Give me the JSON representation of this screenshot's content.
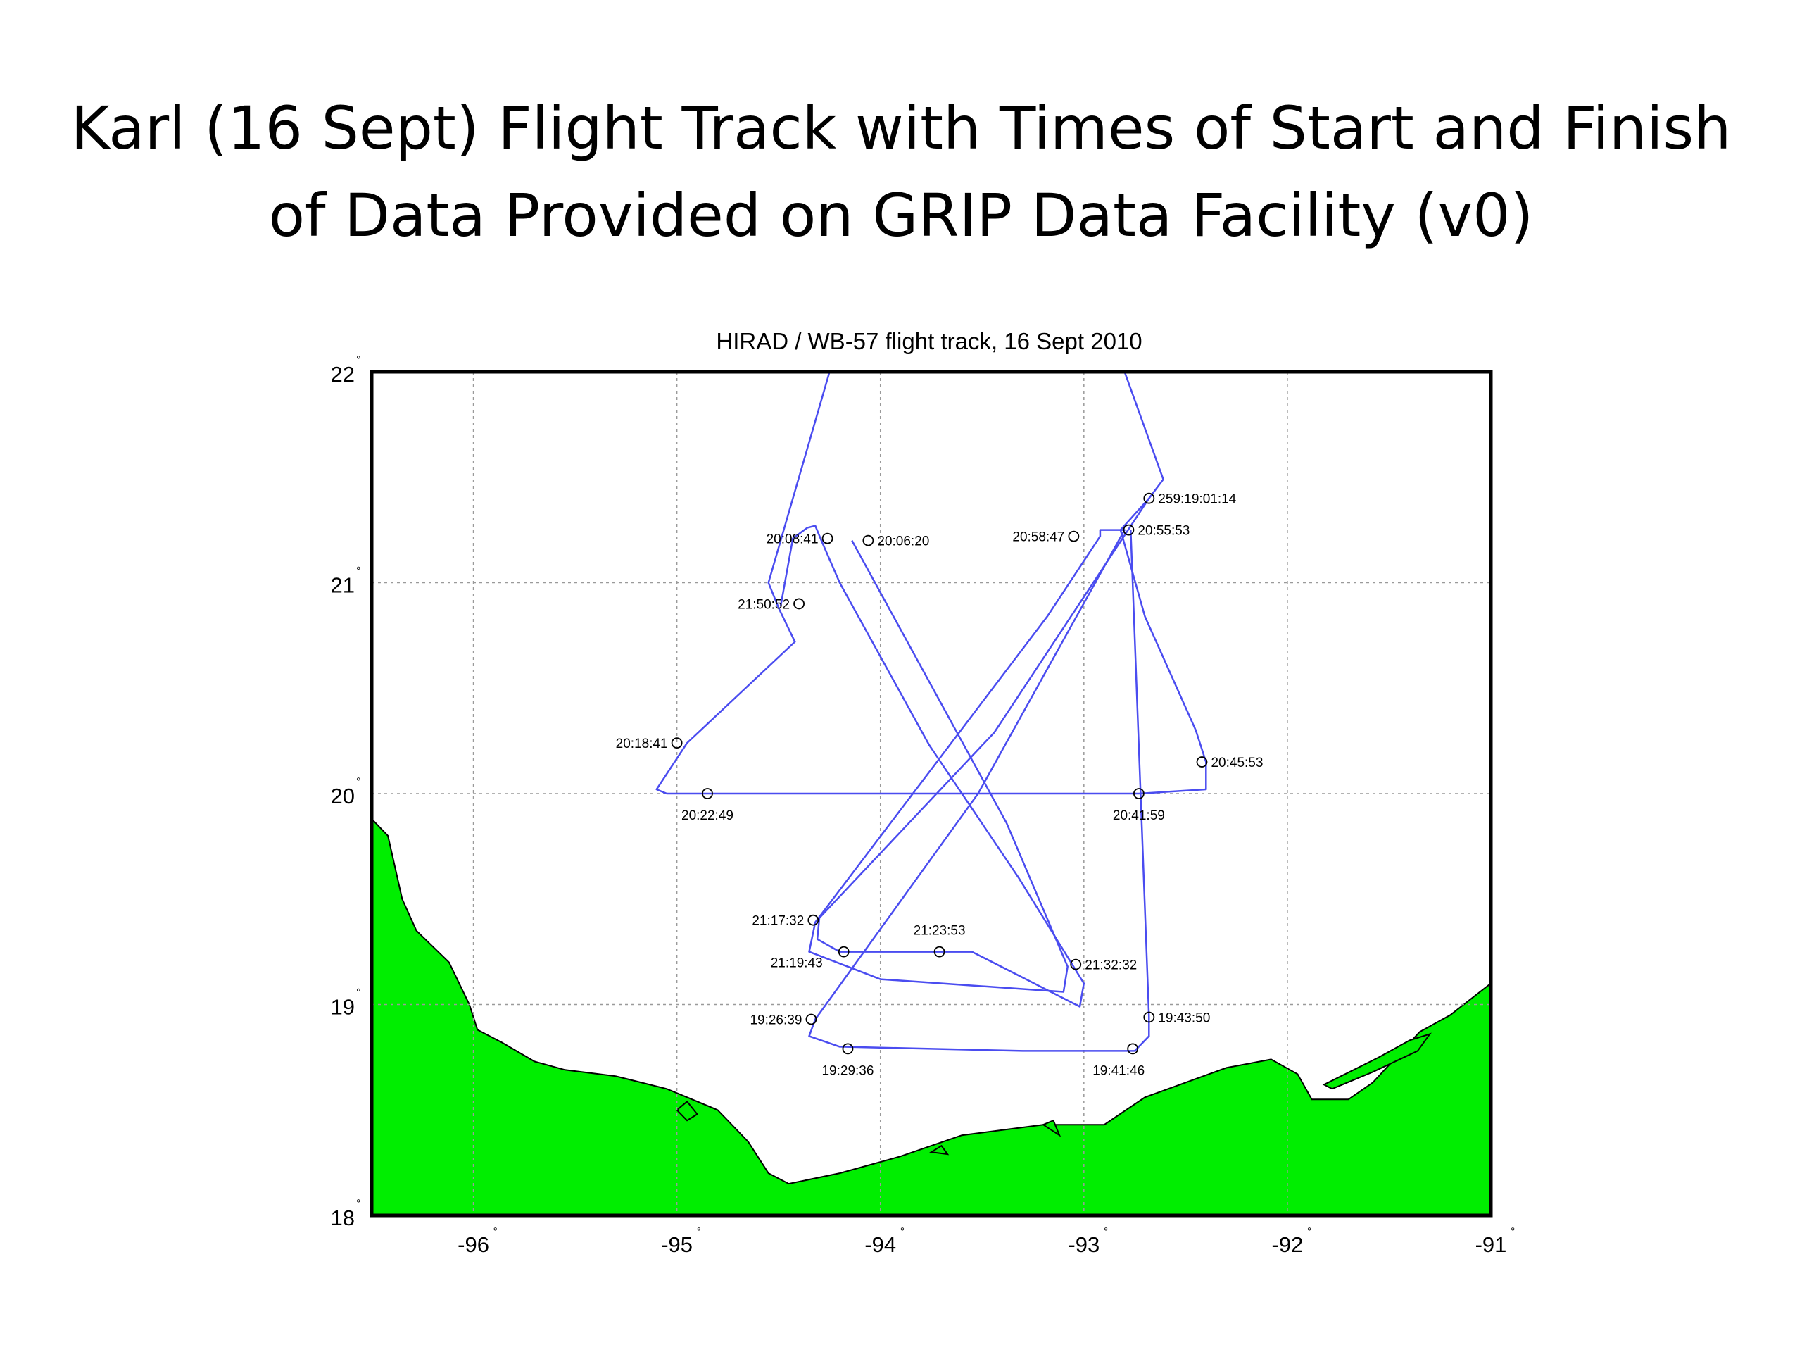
{
  "slide": {
    "title_line1": "Karl (16 Sept) Flight Track with Times of Start and Finish",
    "title_line2": "of Data Provided on GRIP Data Facility (v0)"
  },
  "chart_data": {
    "type": "map",
    "title": "HIRAD / WB-57 flight track, 16 Sept 2010",
    "xlim": [
      -96.5,
      -91
    ],
    "ylim": [
      18,
      22
    ],
    "x_ticks": [
      -96,
      -95,
      -94,
      -93,
      -92,
      -91
    ],
    "y_ticks": [
      18,
      19,
      20,
      21,
      22
    ],
    "degree_symbol": "°",
    "grid": true,
    "colors": {
      "land": "#00ee00",
      "track": "#4a4cf0",
      "ocean": "#ffffff",
      "grid": "#9a9a9a"
    },
    "track": [
      [
        -94.25,
        22.0
      ],
      [
        -94.55,
        21.0
      ],
      [
        -94.5,
        20.88
      ],
      [
        -94.42,
        20.72
      ],
      [
        -94.95,
        20.24
      ],
      [
        -95.1,
        20.02
      ],
      [
        -95.05,
        20.0
      ],
      [
        -94.8,
        20.0
      ],
      [
        -93.9,
        20.0
      ],
      [
        -92.73,
        20.0
      ],
      [
        -92.4,
        20.02
      ],
      [
        -92.4,
        20.15
      ],
      [
        -92.45,
        20.3
      ],
      [
        -92.7,
        20.84
      ],
      [
        -92.82,
        21.25
      ],
      [
        -92.68,
        21.4
      ],
      [
        -92.61,
        21.49
      ],
      [
        -92.8,
        22.0
      ]
    ],
    "track_continuation": [
      [
        -92.68,
        21.4
      ],
      [
        -93.44,
        20.29
      ],
      [
        -94.3,
        19.41
      ],
      [
        -94.31,
        19.31
      ],
      [
        -94.2,
        19.25
      ],
      [
        -93.7,
        19.25
      ],
      [
        -93.55,
        19.25
      ],
      [
        -93.02,
        18.99
      ],
      [
        -93.0,
        19.1
      ],
      [
        -93.32,
        19.6
      ],
      [
        -93.76,
        20.23
      ],
      [
        -94.2,
        21.0
      ],
      [
        -94.29,
        21.2
      ],
      [
        -94.32,
        21.27
      ],
      [
        -94.36,
        21.26
      ],
      [
        -94.43,
        21.21
      ],
      [
        -94.49,
        20.89
      ]
    ],
    "track_x_legs": [
      [
        -94.14,
        21.2
      ],
      [
        -93.38,
        19.86
      ],
      [
        -93.08,
        19.18
      ],
      [
        -93.1,
        19.06
      ],
      [
        -94.0,
        19.12
      ],
      [
        -94.35,
        19.25
      ],
      [
        -94.32,
        19.39
      ],
      [
        -93.18,
        20.84
      ],
      [
        -92.92,
        21.22
      ],
      [
        -92.92,
        21.25
      ],
      [
        -92.8,
        21.25
      ],
      [
        -93.52,
        20.0
      ],
      [
        -94.32,
        18.93
      ],
      [
        -94.35,
        18.85
      ],
      [
        -94.2,
        18.8
      ],
      [
        -93.3,
        18.78
      ],
      [
        -92.75,
        18.78
      ],
      [
        -92.68,
        18.85
      ],
      [
        -92.68,
        18.94
      ],
      [
        -92.77,
        21.25
      ]
    ],
    "waypoints": [
      {
        "lon": -92.68,
        "lat": 21.4,
        "label": "259:19:01:14",
        "anchor": "start"
      },
      {
        "lon": -92.78,
        "lat": 21.25,
        "label": "20:55:53",
        "anchor": "start"
      },
      {
        "lon": -93.05,
        "lat": 21.22,
        "label": "20:58:47",
        "anchor": "end"
      },
      {
        "lon": -94.26,
        "lat": 21.21,
        "label": "20:08:41",
        "anchor": "end"
      },
      {
        "lon": -94.06,
        "lat": 21.2,
        "label": "20:06:20",
        "anchor": "start"
      },
      {
        "lon": -94.4,
        "lat": 20.9,
        "label": "21:50:52",
        "anchor": "end"
      },
      {
        "lon": -95.0,
        "lat": 20.24,
        "label": "20:18:41",
        "anchor": "end"
      },
      {
        "lon": -94.85,
        "lat": 20.0,
        "label": "20:22:49",
        "anchor": "below"
      },
      {
        "lon": -92.42,
        "lat": 20.15,
        "label": "20:45:53",
        "anchor": "start"
      },
      {
        "lon": -92.73,
        "lat": 20.0,
        "label": "20:41:59",
        "anchor": "below"
      },
      {
        "lon": -94.33,
        "lat": 19.4,
        "label": "21:17:32",
        "anchor": "end"
      },
      {
        "lon": -94.18,
        "lat": 19.25,
        "label": "21:19:43",
        "anchor": "endbelow"
      },
      {
        "lon": -93.71,
        "lat": 19.25,
        "label": "21:23:53",
        "anchor": "above"
      },
      {
        "lon": -93.04,
        "lat": 19.19,
        "label": "21:32:32",
        "anchor": "start"
      },
      {
        "lon": -92.68,
        "lat": 18.94,
        "label": "19:43:50",
        "anchor": "start"
      },
      {
        "lon": -94.34,
        "lat": 18.93,
        "label": "19:26:39",
        "anchor": "end"
      },
      {
        "lon": -94.16,
        "lat": 18.79,
        "label": "19:29:36",
        "anchor": "below"
      },
      {
        "lon": -92.76,
        "lat": 18.79,
        "label": "19:41:46",
        "anchor": "belowleft"
      }
    ],
    "land": [
      [
        -96.5,
        19.88
      ],
      [
        -96.42,
        19.8
      ],
      [
        -96.35,
        19.5
      ],
      [
        -96.28,
        19.35
      ],
      [
        -96.12,
        19.2
      ],
      [
        -96.02,
        19.0
      ],
      [
        -95.98,
        18.88
      ],
      [
        -95.86,
        18.82
      ],
      [
        -95.7,
        18.73
      ],
      [
        -95.55,
        18.69
      ],
      [
        -95.3,
        18.66
      ],
      [
        -95.05,
        18.6
      ],
      [
        -94.8,
        18.5
      ],
      [
        -94.65,
        18.35
      ],
      [
        -94.55,
        18.2
      ],
      [
        -94.45,
        18.15
      ],
      [
        -94.2,
        18.2
      ],
      [
        -93.9,
        18.28
      ],
      [
        -93.6,
        18.38
      ],
      [
        -93.2,
        18.43
      ],
      [
        -92.9,
        18.43
      ],
      [
        -92.7,
        18.56
      ],
      [
        -92.5,
        18.63
      ],
      [
        -92.3,
        18.7
      ],
      [
        -92.08,
        18.74
      ],
      [
        -91.95,
        18.67
      ],
      [
        -91.88,
        18.55
      ],
      [
        -91.7,
        18.55
      ],
      [
        -91.58,
        18.63
      ],
      [
        -91.35,
        18.87
      ],
      [
        -91.2,
        18.95
      ],
      [
        -91.0,
        19.1
      ],
      [
        -91.0,
        18.0
      ],
      [
        -96.5,
        18.0
      ]
    ],
    "islands": [
      [
        [
          -91.82,
          18.62
        ],
        [
          -91.55,
          18.75
        ],
        [
          -91.4,
          18.83
        ],
        [
          -91.3,
          18.86
        ],
        [
          -91.36,
          18.78
        ],
        [
          -91.58,
          18.68
        ],
        [
          -91.78,
          18.6
        ]
      ],
      [
        [
          -95.0,
          18.5
        ],
        [
          -94.95,
          18.45
        ],
        [
          -94.9,
          18.48
        ],
        [
          -94.95,
          18.54
        ]
      ],
      [
        [
          -93.75,
          18.3
        ],
        [
          -93.67,
          18.29
        ],
        [
          -93.7,
          18.33
        ]
      ],
      [
        [
          -93.2,
          18.43
        ],
        [
          -93.12,
          18.38
        ],
        [
          -93.15,
          18.45
        ]
      ]
    ]
  }
}
